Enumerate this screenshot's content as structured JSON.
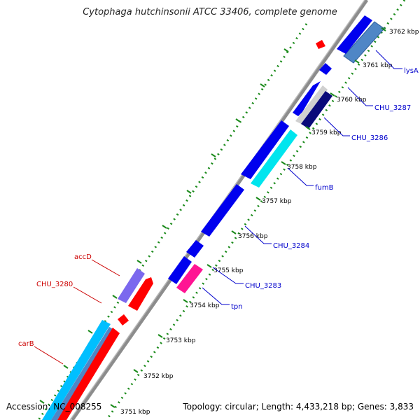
{
  "title": "Cytophaga hutchinsonii ATCC 33406, complete genome",
  "accession": "Accession: NC_008255",
  "summary": "Topology: circular; Length: 4,433,218 bp; Genes: 3,833",
  "colors": {
    "backbone": "#808080",
    "dots": "#1a8a1a",
    "forward_gene": "#ff0000",
    "reverse_gene": "#0000ee",
    "forward_label": "#cc0000",
    "reverse_label": "#0000cc",
    "cyan": "#00e5ee",
    "steelblue": "#4f86c6",
    "navy": "#0a0a7a",
    "magenta": "#ff1493",
    "purple": "#7b68ee"
  },
  "ticks": [
    {
      "label": "3762 kbp"
    },
    {
      "label": "3761 kbp"
    },
    {
      "label": "3760 kbp"
    },
    {
      "label": "3759 kbp"
    },
    {
      "label": "3758 kbp"
    },
    {
      "label": "3757 kbp"
    },
    {
      "label": "3756 kbp"
    },
    {
      "label": "3755 kbp"
    },
    {
      "label": "3754 kbp"
    },
    {
      "label": "3753 kbp"
    },
    {
      "label": "3752 kbp"
    },
    {
      "label": "3751 kbp"
    }
  ],
  "gene_labels": [
    {
      "name": "lysA",
      "strand": "reverse"
    },
    {
      "name": "CHU_3287",
      "strand": "reverse"
    },
    {
      "name": "CHU_3286",
      "strand": "reverse"
    },
    {
      "name": "fumB",
      "strand": "reverse"
    },
    {
      "name": "CHU_3284",
      "strand": "reverse"
    },
    {
      "name": "CHU_3283",
      "strand": "reverse"
    },
    {
      "name": "tpn",
      "strand": "reverse"
    },
    {
      "name": "accD",
      "strand": "forward"
    },
    {
      "name": "CHU_3280",
      "strand": "forward"
    },
    {
      "name": "carB",
      "strand": "forward"
    }
  ]
}
